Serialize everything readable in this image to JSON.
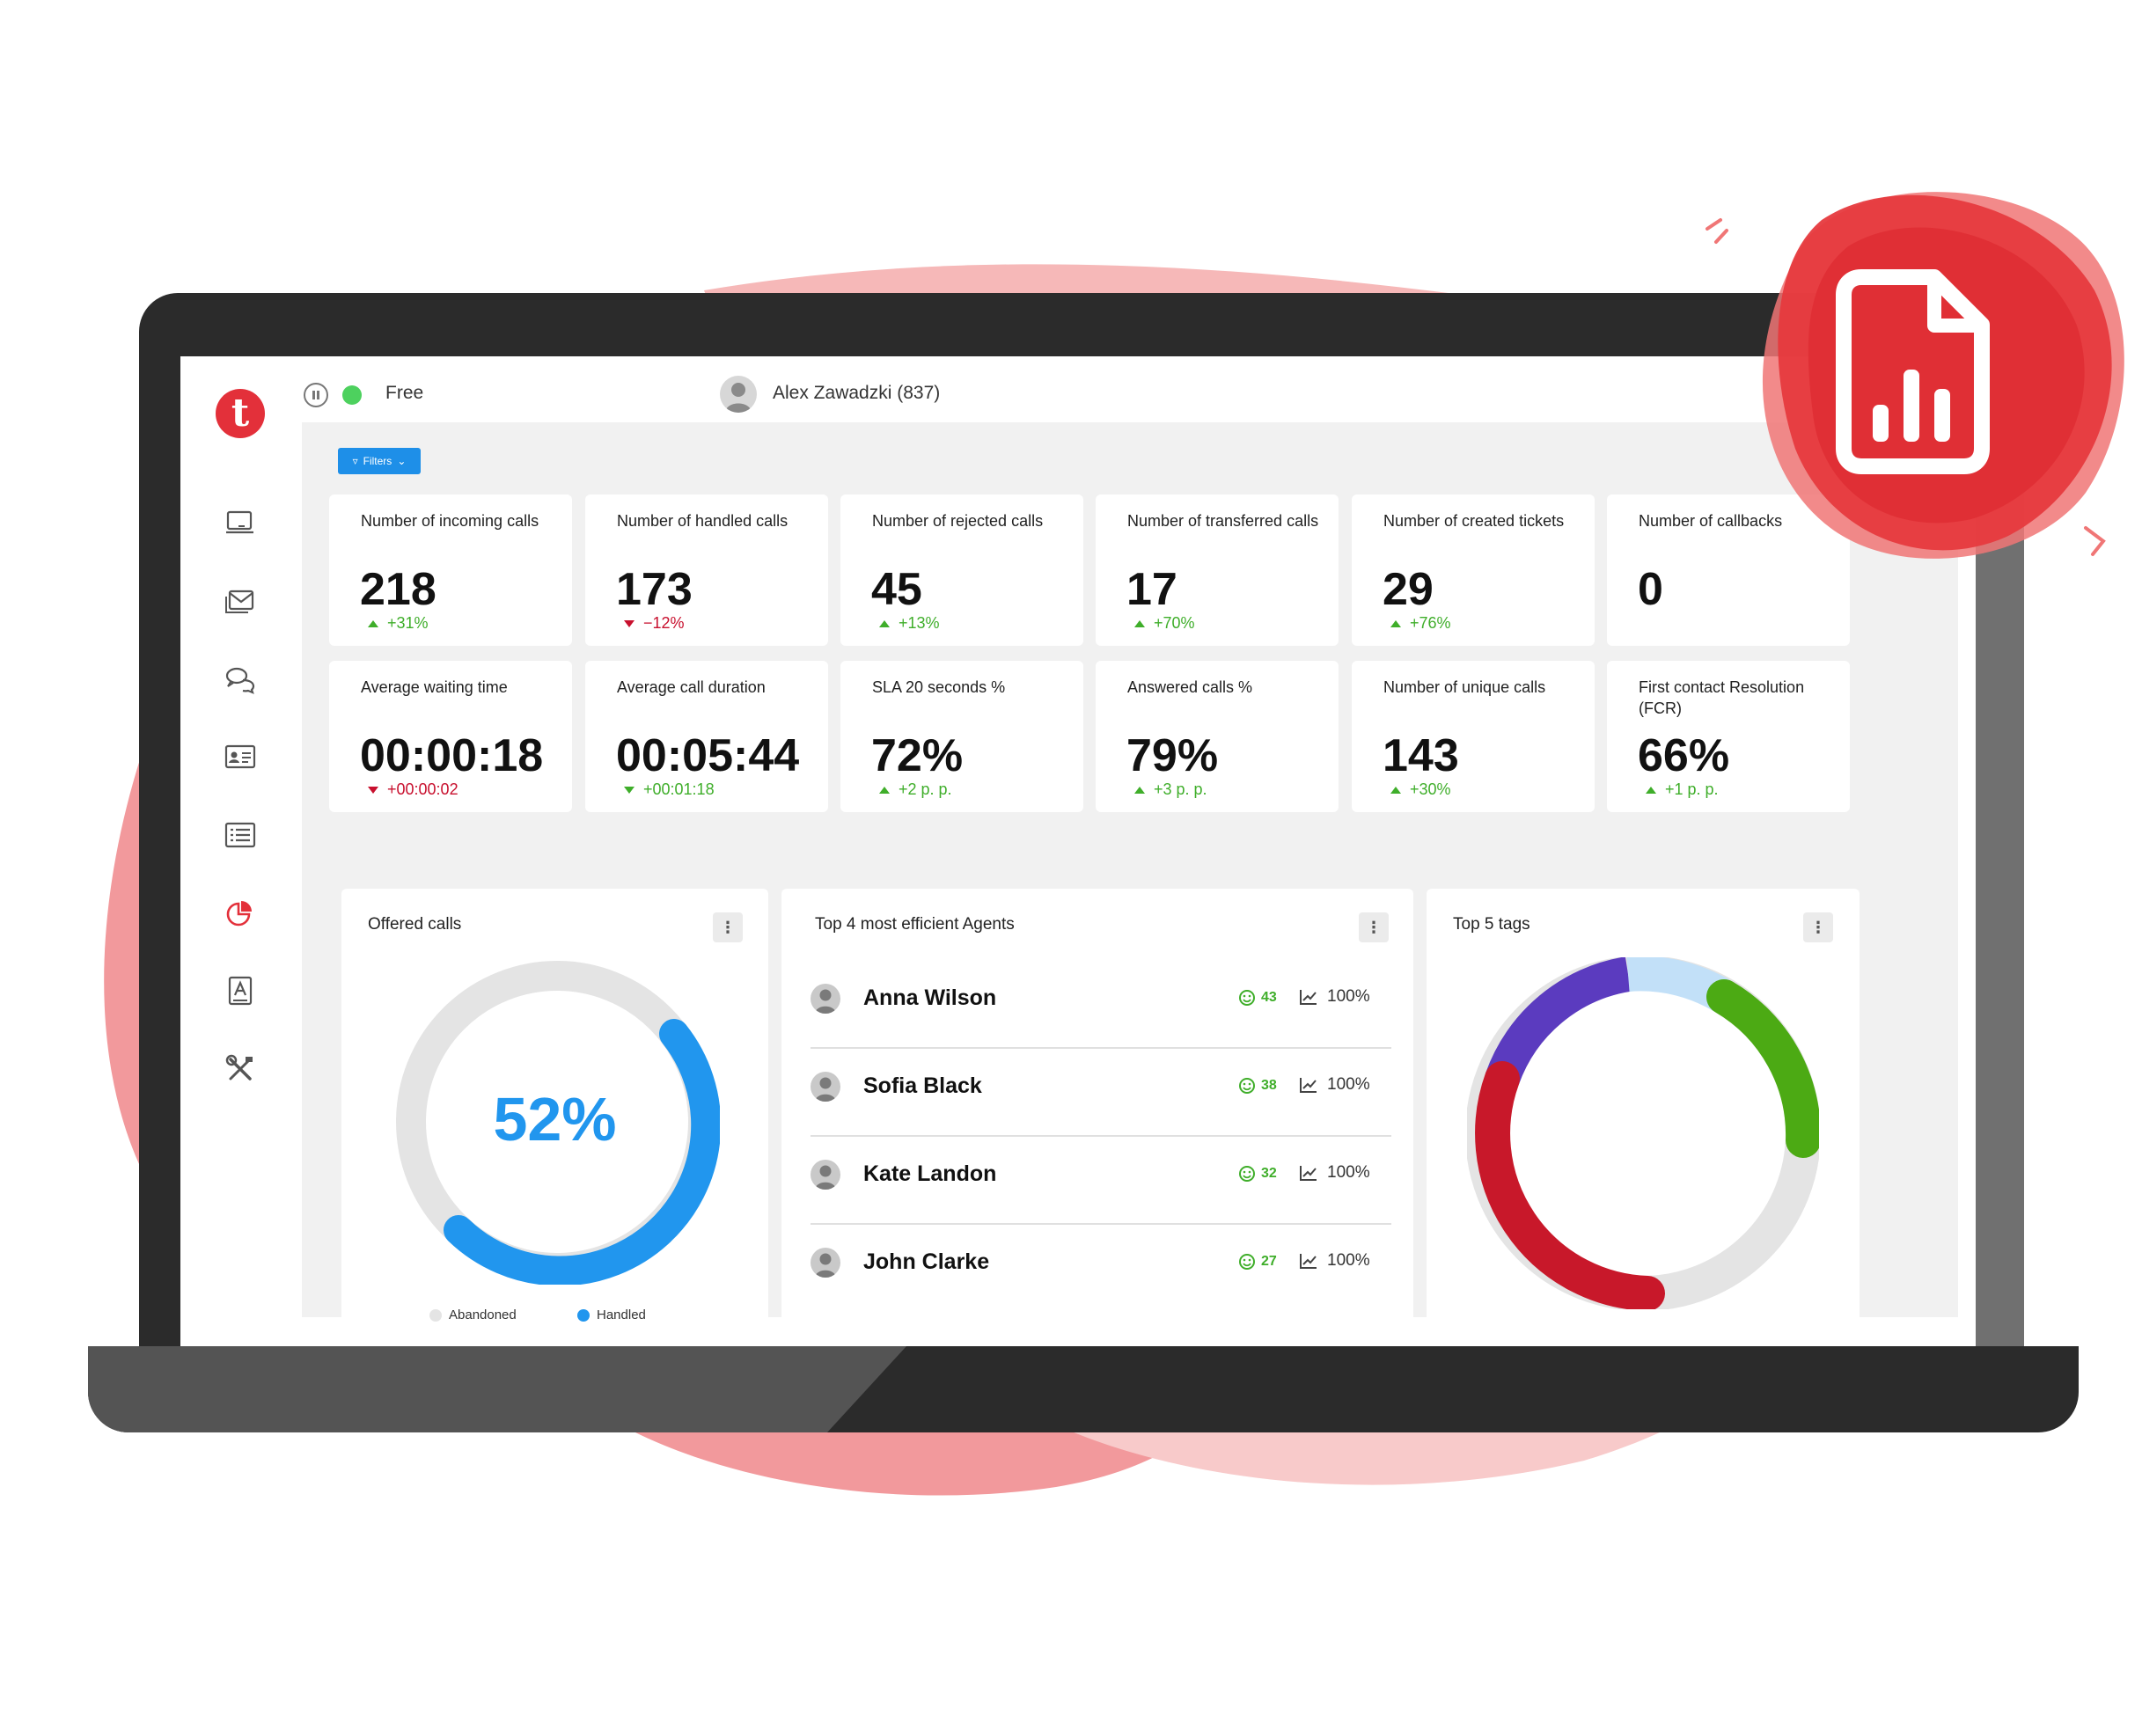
{
  "app": {
    "status_label": "Free",
    "user_name": "Alex Zawadzki (837)",
    "logo_letter": "t",
    "filters_label": "Filters"
  },
  "nav": [
    {
      "icon": "monitor-icon",
      "active": false
    },
    {
      "icon": "mail-icon",
      "active": false
    },
    {
      "icon": "chat-icon",
      "active": false
    },
    {
      "icon": "contact-card-icon",
      "active": false
    },
    {
      "icon": "list-icon",
      "active": false
    },
    {
      "icon": "pie-chart-icon",
      "active": true
    },
    {
      "icon": "address-book-icon",
      "active": false
    },
    {
      "icon": "tools-icon",
      "active": false
    }
  ],
  "kpis": [
    {
      "title": "Number of incoming calls",
      "value": "218",
      "delta": "+31%",
      "trend": "up"
    },
    {
      "title": "Number of handled calls",
      "value": "173",
      "delta": "−12%",
      "trend": "down"
    },
    {
      "title": "Number of rejected calls",
      "value": "45",
      "delta": "+13%",
      "trend": "up"
    },
    {
      "title": "Number of transferred calls",
      "value": "17",
      "delta": "+70%",
      "trend": "up"
    },
    {
      "title": "Number of created tickets",
      "value": "29",
      "delta": "+76%",
      "trend": "up"
    },
    {
      "title": "Number of callbacks",
      "value": "0",
      "delta": "",
      "trend": "none"
    },
    {
      "title": "Average waiting time",
      "value": "00:00:18",
      "delta": "+00:00:02",
      "trend": "down"
    },
    {
      "title": "Average call duration",
      "value": "00:05:44",
      "delta": "+00:01:18",
      "trend": "down-green"
    },
    {
      "title": "SLA 20 seconds %",
      "value": "72%",
      "delta": "+2 p. p.",
      "trend": "up"
    },
    {
      "title": "Answered calls %",
      "value": "79%",
      "delta": "+3 p. p.",
      "trend": "up"
    },
    {
      "title": "Number of unique calls",
      "value": "143",
      "delta": "+30%",
      "trend": "up"
    },
    {
      "title": "First contact Resolution (FCR)",
      "value": "66%",
      "delta": "+1 p. p.",
      "trend": "up"
    }
  ],
  "offered_calls": {
    "title": "Offered calls",
    "percent_label": "52%",
    "legend": [
      {
        "label": "Abandoned",
        "color": "#e4e4e4"
      },
      {
        "label": "Handled",
        "color": "#2196ee"
      }
    ]
  },
  "agents": {
    "title": "Top 4 most efficient Agents",
    "rows": [
      {
        "name": "Anna Wilson",
        "score": "43",
        "rate": "100%"
      },
      {
        "name": "Sofia Black",
        "score": "38",
        "rate": "100%"
      },
      {
        "name": "Kate Landon",
        "score": "32",
        "rate": "100%"
      },
      {
        "name": "John Clarke",
        "score": "27",
        "rate": "100%"
      }
    ]
  },
  "tags": {
    "title": "Top 5 tags",
    "segment_colors": [
      "#5b3bbf",
      "#c2e0f8",
      "#4caa14",
      "#e4e4e4",
      "#c8182a"
    ]
  },
  "colors": {
    "brand_red": "#e3303a",
    "accent_blue": "#2196ee",
    "positive": "#3fae2a",
    "negative": "#c8102e"
  }
}
